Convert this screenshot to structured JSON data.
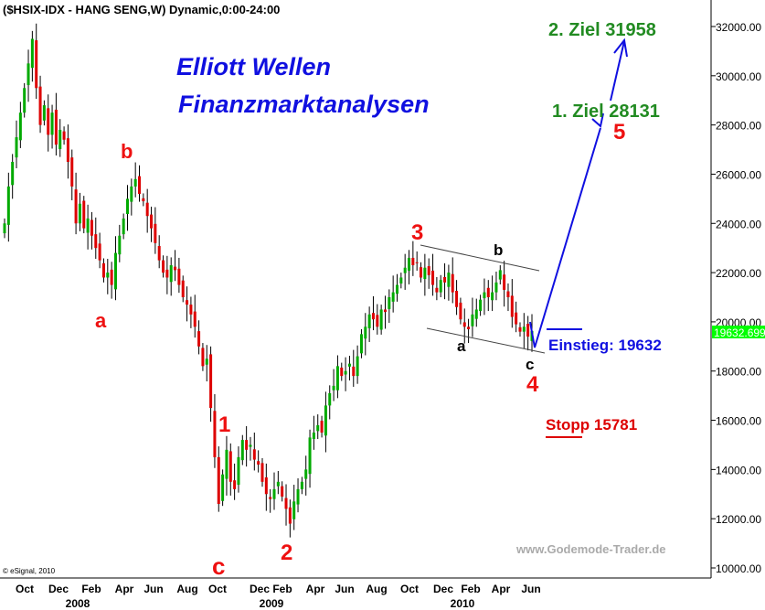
{
  "header": {
    "title": "($HSIX-IDX - HANG SENG,W) Dynamic,0:00-24:00"
  },
  "branding": {
    "title1": "Elliott Wellen",
    "title2": "Finanzmarktanalysen",
    "watermark": "www.Godemode-Trader.de",
    "copyright": "© eSignal, 2010"
  },
  "chart_data": {
    "type": "candlestick",
    "title": "($HSIX-IDX - HANG SENG,W) Dynamic,0:00-24:00",
    "ylim": [
      10000,
      32000
    ],
    "y_ticks": [
      "32000.00",
      "30000.00",
      "28000.00",
      "26000.00",
      "24000.00",
      "22000.00",
      "20000.00",
      "18000.00",
      "16000.00",
      "14000.00",
      "12000.00",
      "10000.00"
    ],
    "x_ticks": [
      "Oct",
      "Dec",
      "Feb",
      "Apr",
      "Jun",
      "Aug",
      "Oct",
      "Dec",
      "Feb",
      "Apr",
      "Jun",
      "Aug",
      "Oct",
      "Dec",
      "Feb",
      "Apr",
      "Jun"
    ],
    "years": [
      "2008",
      "2009",
      "2010"
    ],
    "last_price": "19632.699",
    "last_price_color": "#00ff00",
    "up_color": "#00aa00",
    "down_color": "#dd0000",
    "weekly_closes": [
      24000,
      25500,
      26500,
      27500,
      28500,
      29500,
      30500,
      31500,
      29500,
      28000,
      28800,
      27600,
      28500,
      27200,
      27800,
      27400,
      26500,
      25500,
      24000,
      24800,
      23800,
      24200,
      23500,
      23000,
      22500,
      21800,
      22000,
      21500,
      22800,
      23500,
      24200,
      25000,
      25500,
      25800,
      25200,
      24900,
      24300,
      23800,
      23200,
      22500,
      22000,
      21800,
      22300,
      22100,
      21500,
      21000,
      20700,
      20300,
      19800,
      19000,
      18200,
      18500,
      16500,
      14500,
      12600,
      13800,
      14800,
      13500,
      13200,
      14500,
      15200,
      14800,
      15000,
      14400,
      14200,
      13500,
      13000,
      12800,
      13200,
      13500,
      12900,
      12400,
      11800,
      12700,
      13200,
      13500,
      14000,
      15300,
      15500,
      15800,
      15500,
      16600,
      17100,
      17400,
      18200,
      17800,
      18000,
      18300,
      17800,
      18600,
      19500,
      19800,
      20300,
      20100,
      19800,
      20500,
      20400,
      21000,
      21200,
      21500,
      21800,
      22200,
      22600,
      22300,
      22400,
      21800,
      22200,
      21900,
      21500,
      21200,
      21700,
      21600,
      22000,
      21200,
      20600,
      20100,
      19800,
      19700,
      20300,
      20500,
      20900,
      21200,
      21000,
      21200,
      21600,
      22100,
      21300,
      21000,
      20200,
      19900,
      19600,
      19800,
      19400,
      19632
    ],
    "wave_labels": [
      "a",
      "b",
      "c",
      "1",
      "2",
      "3",
      "4",
      "5"
    ],
    "sub_wave_labels": [
      "a",
      "b",
      "c"
    ],
    "annotations": {
      "target1": "1. Ziel 28131",
      "target2": "2. Ziel 31958",
      "entry": "Einstieg: 19632",
      "stop": "Stopp 15781"
    }
  }
}
